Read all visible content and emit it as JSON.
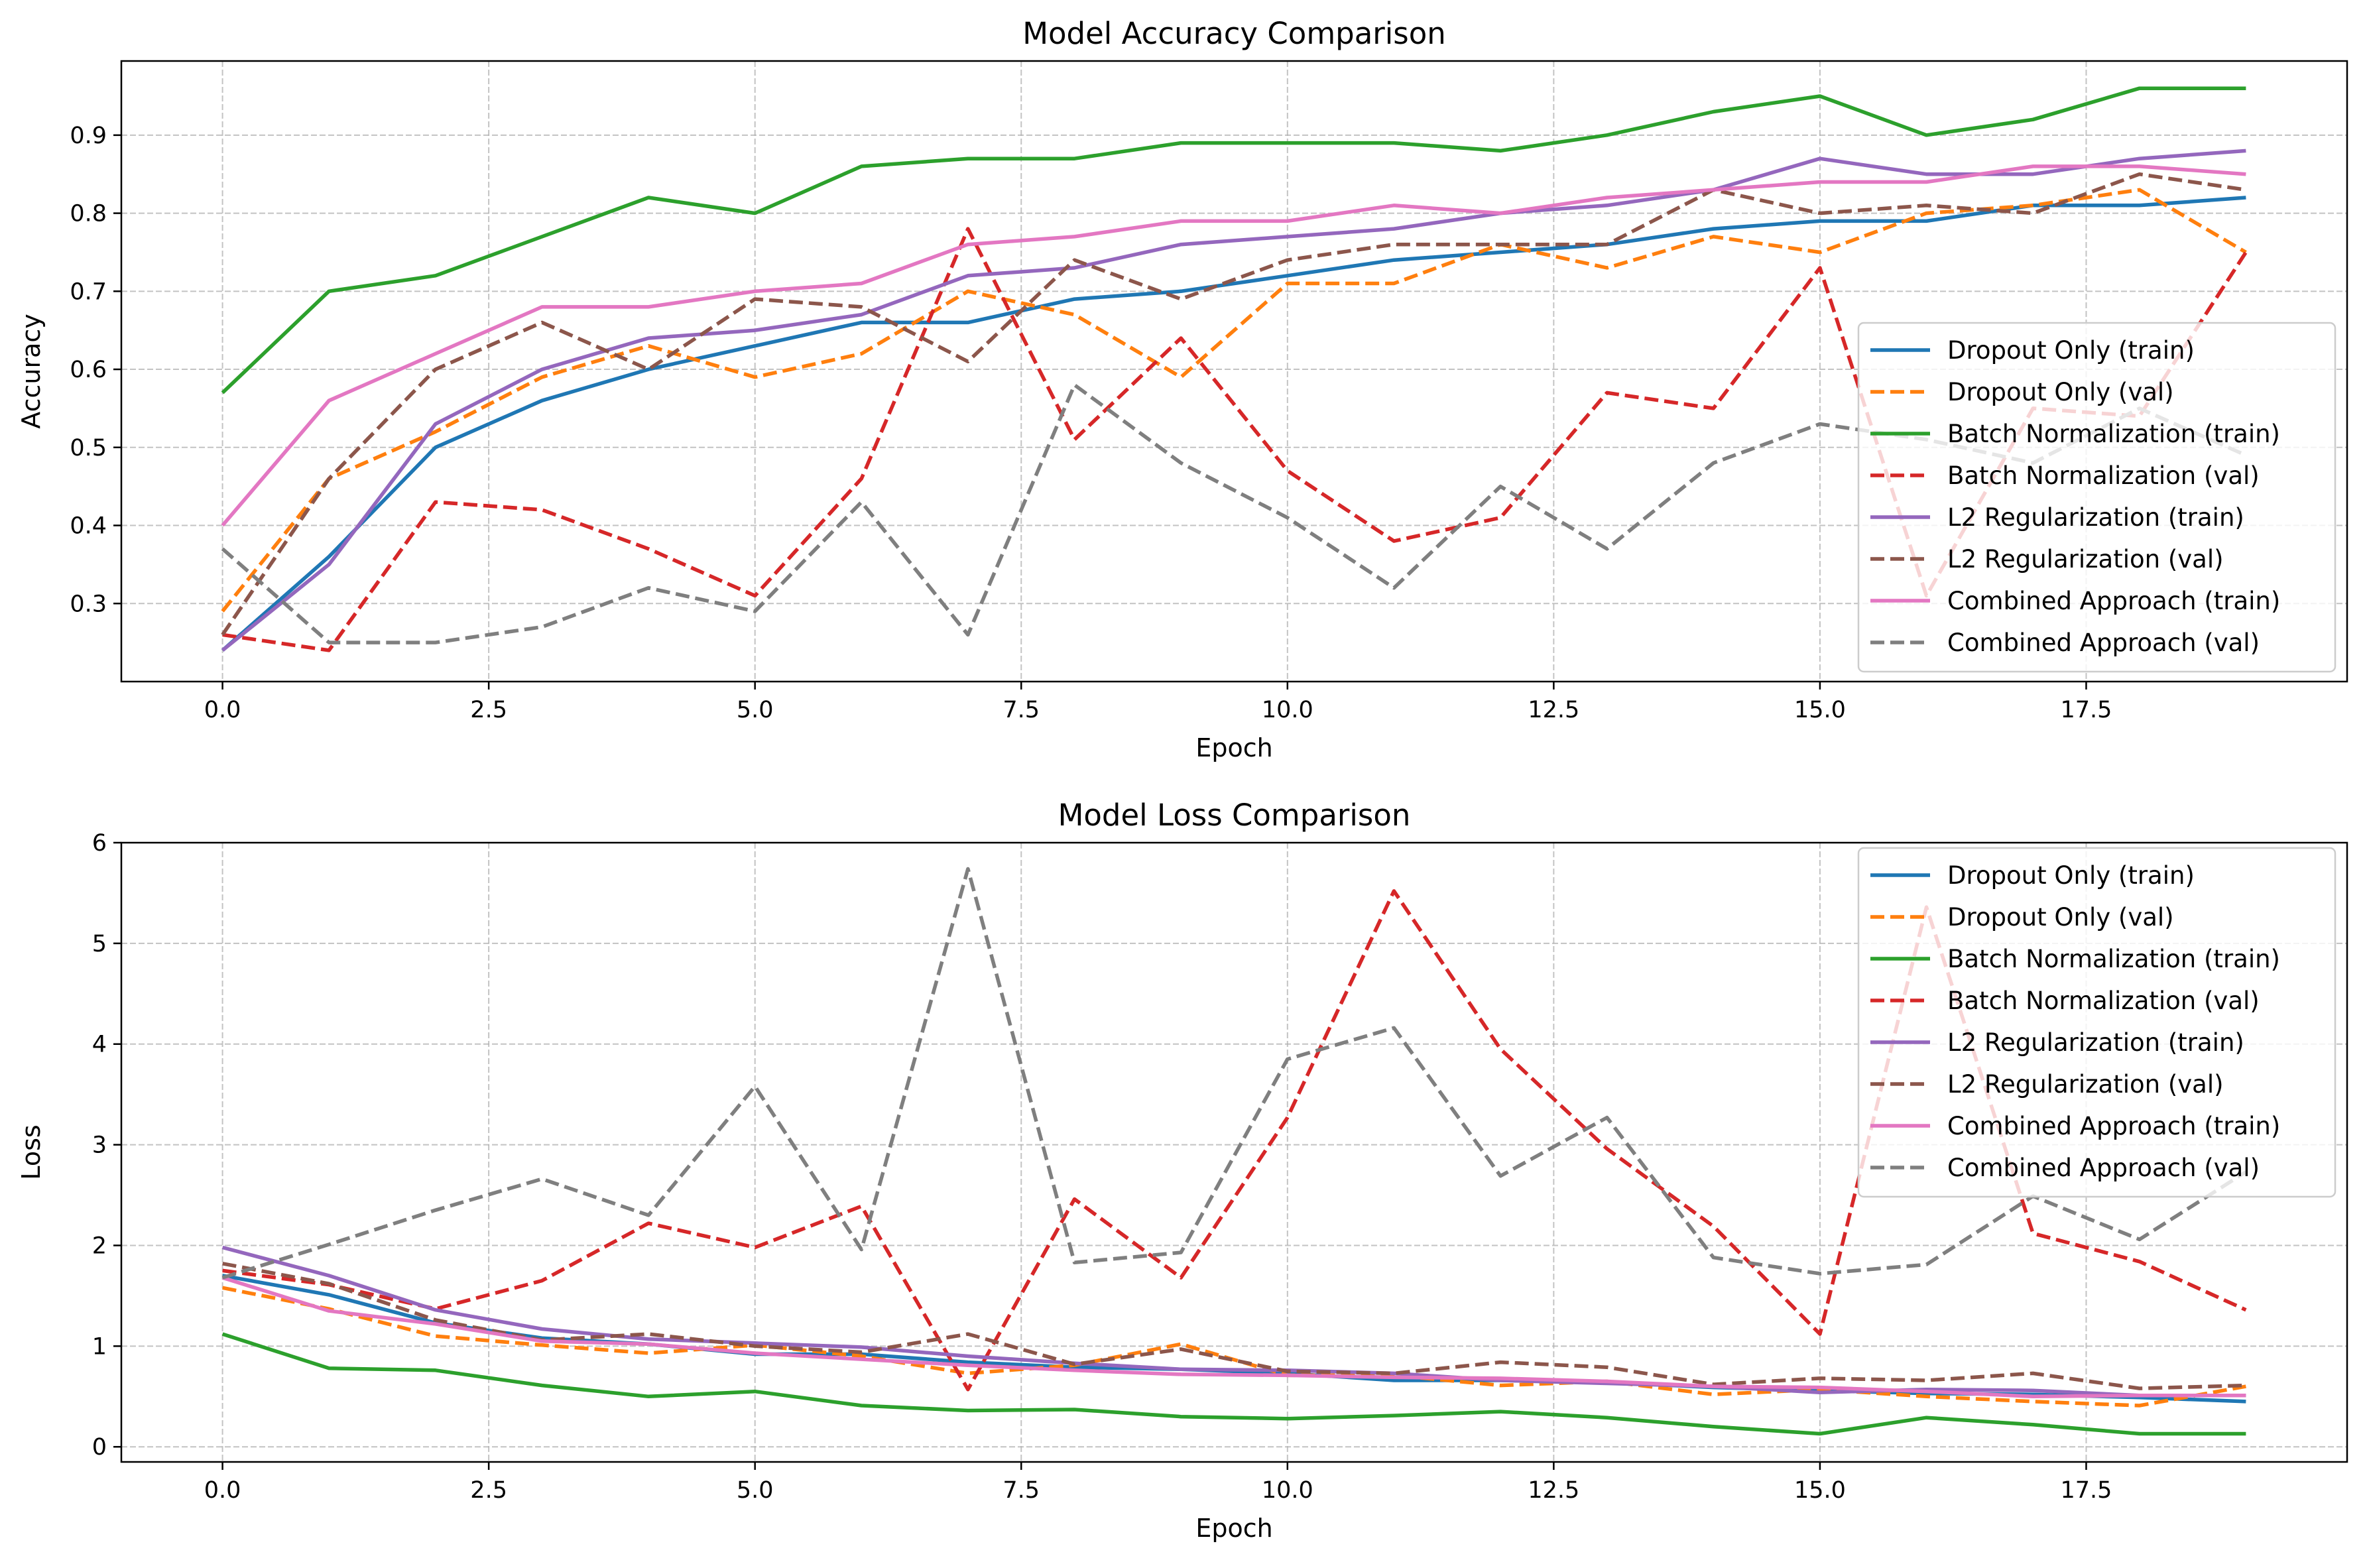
{
  "figure": {
    "background": "#ffffff",
    "grid_color": "#b0b0b0"
  },
  "chart_data": [
    {
      "type": "line",
      "title": "Model Accuracy Comparison",
      "xlabel": "Epoch",
      "ylabel": "Accuracy",
      "xlim": [
        -0.95,
        19.95
      ],
      "ylim": [
        0.2,
        0.995
      ],
      "xticks": [
        0,
        2.5,
        5,
        7.5,
        10,
        12.5,
        15,
        17.5
      ],
      "xtick_labels": [
        "0.0",
        "2.5",
        "5.0",
        "7.5",
        "10.0",
        "12.5",
        "15.0",
        "17.5"
      ],
      "yticks": [
        0.3,
        0.4,
        0.5,
        0.6,
        0.7,
        0.8,
        0.9
      ],
      "ytick_labels": [
        "0.3",
        "0.4",
        "0.5",
        "0.6",
        "0.7",
        "0.8",
        "0.9"
      ],
      "grid": true,
      "legend_position": "lower-right",
      "x": [
        0,
        1,
        2,
        3,
        4,
        5,
        6,
        7,
        8,
        9,
        10,
        11,
        12,
        13,
        14,
        15,
        16,
        17,
        18,
        19
      ],
      "series": [
        {
          "name": "Dropout Only (train)",
          "color": "#1f77b4",
          "dash": "solid",
          "values": [
            0.24,
            0.36,
            0.5,
            0.56,
            0.6,
            0.63,
            0.66,
            0.66,
            0.69,
            0.7,
            0.72,
            0.74,
            0.75,
            0.76,
            0.78,
            0.79,
            0.79,
            0.81,
            0.81,
            0.82
          ]
        },
        {
          "name": "Dropout Only (val)",
          "color": "#ff7f0e",
          "dash": "dashed",
          "values": [
            0.29,
            0.46,
            0.52,
            0.59,
            0.63,
            0.59,
            0.62,
            0.7,
            0.67,
            0.59,
            0.71,
            0.71,
            0.76,
            0.73,
            0.77,
            0.75,
            0.8,
            0.81,
            0.83,
            0.75
          ]
        },
        {
          "name": "Batch Normalization (train)",
          "color": "#2ca02c",
          "dash": "solid",
          "values": [
            0.57,
            0.7,
            0.72,
            0.77,
            0.82,
            0.8,
            0.86,
            0.87,
            0.87,
            0.89,
            0.89,
            0.89,
            0.88,
            0.9,
            0.93,
            0.95,
            0.9,
            0.92,
            0.96,
            0.96
          ]
        },
        {
          "name": "Batch Normalization (val)",
          "color": "#d62728",
          "dash": "dashed",
          "values": [
            0.26,
            0.24,
            0.43,
            0.42,
            0.37,
            0.31,
            0.46,
            0.78,
            0.51,
            0.64,
            0.47,
            0.38,
            0.41,
            0.57,
            0.55,
            0.73,
            0.31,
            0.55,
            0.54,
            0.75
          ]
        },
        {
          "name": "L2 Regularization (train)",
          "color": "#9467bd",
          "dash": "solid",
          "values": [
            0.24,
            0.35,
            0.53,
            0.6,
            0.64,
            0.65,
            0.67,
            0.72,
            0.73,
            0.76,
            0.77,
            0.78,
            0.8,
            0.81,
            0.83,
            0.87,
            0.85,
            0.85,
            0.87,
            0.88
          ]
        },
        {
          "name": "L2 Regularization (val)",
          "color": "#8c564b",
          "dash": "dashed",
          "values": [
            0.26,
            0.46,
            0.6,
            0.66,
            0.6,
            0.69,
            0.68,
            0.61,
            0.74,
            0.69,
            0.74,
            0.76,
            0.76,
            0.76,
            0.83,
            0.8,
            0.81,
            0.8,
            0.85,
            0.83
          ]
        },
        {
          "name": "Combined Approach (train)",
          "color": "#e377c2",
          "dash": "solid",
          "values": [
            0.4,
            0.56,
            0.62,
            0.68,
            0.68,
            0.7,
            0.71,
            0.76,
            0.77,
            0.79,
            0.79,
            0.81,
            0.8,
            0.82,
            0.83,
            0.84,
            0.84,
            0.86,
            0.86,
            0.85
          ]
        },
        {
          "name": "Combined Approach (val)",
          "color": "#7f7f7f",
          "dash": "dashed",
          "values": [
            0.37,
            0.25,
            0.25,
            0.27,
            0.32,
            0.29,
            0.43,
            0.26,
            0.58,
            0.48,
            0.41,
            0.32,
            0.45,
            0.37,
            0.48,
            0.53,
            0.51,
            0.48,
            0.55,
            0.49
          ]
        }
      ]
    },
    {
      "type": "line",
      "title": "Model Loss Comparison",
      "xlabel": "Epoch",
      "ylabel": "Loss",
      "xlim": [
        -0.95,
        19.95
      ],
      "ylim": [
        -0.15,
        6.0
      ],
      "xticks": [
        0,
        2.5,
        5,
        7.5,
        10,
        12.5,
        15,
        17.5
      ],
      "xtick_labels": [
        "0.0",
        "2.5",
        "5.0",
        "7.5",
        "10.0",
        "12.5",
        "15.0",
        "17.5"
      ],
      "yticks": [
        0,
        1,
        2,
        3,
        4,
        5,
        6
      ],
      "ytick_labels": [
        "0",
        "1",
        "2",
        "3",
        "4",
        "5",
        "6"
      ],
      "grid": true,
      "legend_position": "upper-right",
      "x": [
        0,
        1,
        2,
        3,
        4,
        5,
        6,
        7,
        8,
        9,
        10,
        11,
        12,
        13,
        14,
        15,
        16,
        17,
        18,
        19
      ],
      "series": [
        {
          "name": "Dropout Only (train)",
          "color": "#1f77b4",
          "dash": "solid",
          "values": [
            1.7,
            1.51,
            1.23,
            1.08,
            1.02,
            0.92,
            0.92,
            0.84,
            0.79,
            0.77,
            0.73,
            0.66,
            0.66,
            0.64,
            0.59,
            0.56,
            0.53,
            0.52,
            0.49,
            0.45
          ]
        },
        {
          "name": "Dropout Only (val)",
          "color": "#ff7f0e",
          "dash": "dashed",
          "values": [
            1.58,
            1.37,
            1.1,
            1.01,
            0.93,
            1.01,
            0.9,
            0.73,
            0.81,
            1.02,
            0.71,
            0.71,
            0.61,
            0.65,
            0.52,
            0.57,
            0.5,
            0.45,
            0.41,
            0.6
          ]
        },
        {
          "name": "Batch Normalization (train)",
          "color": "#2ca02c",
          "dash": "solid",
          "values": [
            1.12,
            0.78,
            0.76,
            0.61,
            0.5,
            0.55,
            0.41,
            0.36,
            0.37,
            0.3,
            0.28,
            0.31,
            0.35,
            0.29,
            0.2,
            0.13,
            0.29,
            0.22,
            0.13,
            0.13
          ]
        },
        {
          "name": "Batch Normalization (val)",
          "color": "#d62728",
          "dash": "dashed",
          "values": [
            1.75,
            1.61,
            1.37,
            1.65,
            2.22,
            1.98,
            2.39,
            0.57,
            2.46,
            1.68,
            3.27,
            5.52,
            3.95,
            2.96,
            2.19,
            1.12,
            5.36,
            2.12,
            1.84,
            1.36
          ]
        },
        {
          "name": "L2 Regularization (train)",
          "color": "#9467bd",
          "dash": "solid",
          "values": [
            1.98,
            1.7,
            1.36,
            1.17,
            1.07,
            1.03,
            0.99,
            0.9,
            0.83,
            0.77,
            0.76,
            0.73,
            0.66,
            0.63,
            0.6,
            0.54,
            0.57,
            0.56,
            0.51,
            0.51
          ]
        },
        {
          "name": "L2 Regularization (val)",
          "color": "#8c564b",
          "dash": "dashed",
          "values": [
            1.82,
            1.62,
            1.26,
            1.06,
            1.12,
            1.0,
            0.94,
            1.12,
            0.82,
            0.97,
            0.75,
            0.73,
            0.84,
            0.79,
            0.62,
            0.68,
            0.66,
            0.73,
            0.58,
            0.61
          ]
        },
        {
          "name": "Combined Approach (train)",
          "color": "#e377c2",
          "dash": "solid",
          "values": [
            1.68,
            1.35,
            1.22,
            1.05,
            1.02,
            0.93,
            0.87,
            0.81,
            0.76,
            0.72,
            0.71,
            0.69,
            0.68,
            0.65,
            0.6,
            0.59,
            0.55,
            0.5,
            0.51,
            0.51
          ]
        },
        {
          "name": "Combined Approach (val)",
          "color": "#7f7f7f",
          "dash": "dashed",
          "values": [
            1.68,
            2.01,
            2.35,
            2.66,
            2.3,
            3.58,
            1.96,
            5.74,
            1.83,
            1.93,
            3.85,
            4.16,
            2.69,
            3.27,
            1.88,
            1.72,
            1.81,
            2.49,
            2.06,
            2.73
          ]
        }
      ]
    }
  ]
}
